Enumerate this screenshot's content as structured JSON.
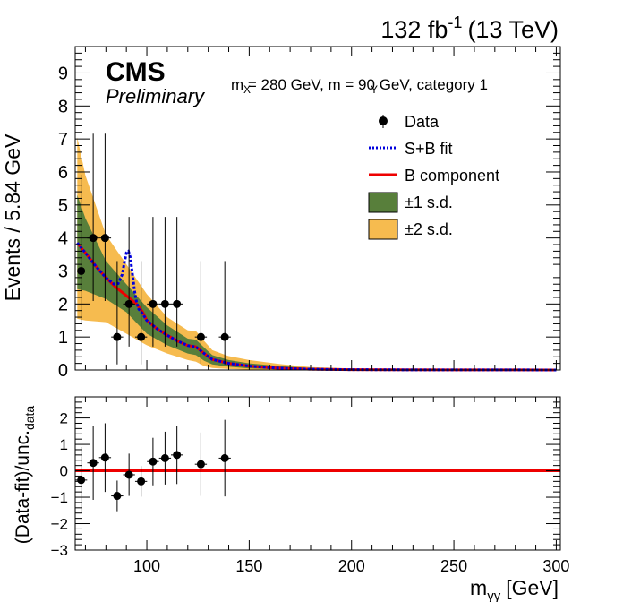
{
  "header": {
    "lumi": "132 fb",
    "lumi_sup": "-1",
    "energy": "(13 TeV)",
    "experiment": "CMS",
    "status": "Preliminary",
    "info": "m  = 280 GeV, m   = 90 GeV, category 1",
    "info_sub_x": "X",
    "info_sub_y": "Y"
  },
  "axes": {
    "ylabel_top": "Events / 5.84 GeV",
    "ylabel_bottom_main": "(Data-fit)/unc.",
    "ylabel_bottom_sub": "data",
    "xlabel_main": "m",
    "xlabel_sub": "γγ",
    "xlabel_unit": "[GeV]"
  },
  "legend": {
    "data": "Data",
    "sb_fit": "S+B fit",
    "b_component": "B component",
    "one_sd": "±1 s.d.",
    "two_sd": "±2 s.d."
  },
  "colors": {
    "sb_fit": "#0000dd",
    "b_component": "#ee0000",
    "one_sd": "#587f3b",
    "two_sd": "#f6bb4f",
    "data": "#000000"
  },
  "chart_data": [
    {
      "type": "scatter",
      "name": "top",
      "xlim": [
        65,
        302
      ],
      "ylim": [
        0,
        9.8
      ],
      "xticks": [
        100,
        150,
        200,
        250,
        300
      ],
      "yticks": [
        0,
        1,
        2,
        3,
        4,
        5,
        6,
        7,
        8,
        9
      ],
      "ytick_labels": [
        "0",
        "1",
        "2",
        "3",
        "4",
        "5",
        "6",
        "7",
        "8",
        "9"
      ],
      "data_points": {
        "x": [
          67.9,
          73.8,
          79.6,
          85.5,
          91.3,
          97.2,
          103.0,
          108.9,
          114.7,
          126.4,
          138.1
        ],
        "y": [
          3,
          4,
          4,
          1,
          2,
          1,
          2,
          2,
          2,
          1,
          1
        ],
        "yerr_low": [
          1.63,
          1.91,
          1.91,
          0.83,
          1.29,
          0.83,
          1.29,
          1.29,
          1.29,
          0.83,
          0.83
        ],
        "yerr_high": [
          2.92,
          3.16,
          3.16,
          2.3,
          2.64,
          2.3,
          2.64,
          2.64,
          2.64,
          2.3,
          2.3
        ],
        "xerr": 2.92
      },
      "b_component": {
        "x": [
          66,
          70,
          75,
          80,
          85,
          88,
          90,
          92,
          95,
          98,
          100,
          105,
          110,
          115,
          120,
          124,
          128,
          132,
          140,
          150,
          160,
          170,
          180,
          190,
          200,
          220,
          250,
          280,
          300
        ],
        "y": [
          3.85,
          3.55,
          3.15,
          2.8,
          2.5,
          2.35,
          2.25,
          2.15,
          2.0,
          1.75,
          1.5,
          1.25,
          1.05,
          0.88,
          0.74,
          0.7,
          0.5,
          0.32,
          0.2,
          0.12,
          0.07,
          0.04,
          0.025,
          0.015,
          0.01,
          0.006,
          0.003,
          0.002,
          0.001
        ]
      },
      "sb_fit": {
        "x": [
          66,
          70,
          75,
          80,
          84,
          86,
          88,
          89,
          90,
          91,
          92,
          93,
          94,
          95,
          96,
          98,
          100,
          105,
          110,
          115,
          120,
          124,
          128,
          132,
          140,
          150,
          160,
          170,
          180,
          190,
          200,
          220,
          250,
          280,
          300
        ],
        "y": [
          3.85,
          3.55,
          3.15,
          2.8,
          2.6,
          2.62,
          2.9,
          3.25,
          3.55,
          3.6,
          3.4,
          2.9,
          2.4,
          2.05,
          1.85,
          1.7,
          1.5,
          1.25,
          1.05,
          0.88,
          0.74,
          0.7,
          0.5,
          0.32,
          0.2,
          0.12,
          0.07,
          0.04,
          0.025,
          0.015,
          0.01,
          0.006,
          0.003,
          0.002,
          0.001
        ]
      },
      "band_1sd": {
        "x": [
          66,
          70,
          80,
          90,
          100,
          110,
          120,
          124,
          128,
          132,
          140,
          150,
          165,
          180,
          200,
          250,
          300
        ],
        "low": [
          2.45,
          2.4,
          2.15,
          1.75,
          1.1,
          0.75,
          0.5,
          0.45,
          0.28,
          0.17,
          0.1,
          0.05,
          0.02,
          0.008,
          0.004,
          0.001,
          0.0
        ],
        "high": [
          5.3,
          4.6,
          3.3,
          2.6,
          1.9,
          1.35,
          0.95,
          0.92,
          0.68,
          0.45,
          0.3,
          0.2,
          0.12,
          0.06,
          0.03,
          0.01,
          0.005
        ]
      },
      "band_2sd": {
        "x": [
          66,
          70,
          80,
          90,
          100,
          110,
          120,
          124,
          128,
          132,
          140,
          150,
          165,
          180,
          200,
          250,
          300
        ],
        "low": [
          1.55,
          1.5,
          1.45,
          1.1,
          0.75,
          0.5,
          0.3,
          0.25,
          0.12,
          0.06,
          0.03,
          0.01,
          0.0,
          0.0,
          0.0,
          0.0,
          0.0
        ],
        "high": [
          7.05,
          5.9,
          4.1,
          3.2,
          2.3,
          1.6,
          1.2,
          1.18,
          0.88,
          0.6,
          0.42,
          0.3,
          0.18,
          0.09,
          0.05,
          0.02,
          0.01
        ]
      }
    },
    {
      "type": "scatter",
      "name": "residual",
      "xlim": [
        65,
        302
      ],
      "ylim": [
        -3,
        2.8
      ],
      "xticks": [
        100,
        150,
        200,
        250,
        300
      ],
      "xtick_labels": [
        "100",
        "150",
        "200",
        "250",
        "300"
      ],
      "yticks": [
        -3,
        -2,
        -1,
        0,
        1,
        2
      ],
      "ytick_labels": [
        "−3",
        "−2",
        "−1",
        "0",
        "1",
        "2"
      ],
      "points": {
        "x": [
          67.9,
          73.8,
          79.6,
          85.5,
          91.3,
          97.2,
          103.0,
          108.9,
          114.7,
          126.4,
          138.1
        ],
        "y": [
          -0.35,
          0.3,
          0.5,
          -0.95,
          -0.15,
          -0.4,
          0.35,
          0.48,
          0.6,
          0.25,
          0.48
        ],
        "yerr": [
          1.25,
          1.4,
          1.3,
          0.58,
          0.8,
          0.58,
          0.9,
          1.0,
          1.1,
          1.2,
          1.45
        ],
        "xerr": 2.92
      },
      "reference_y": 0
    }
  ]
}
